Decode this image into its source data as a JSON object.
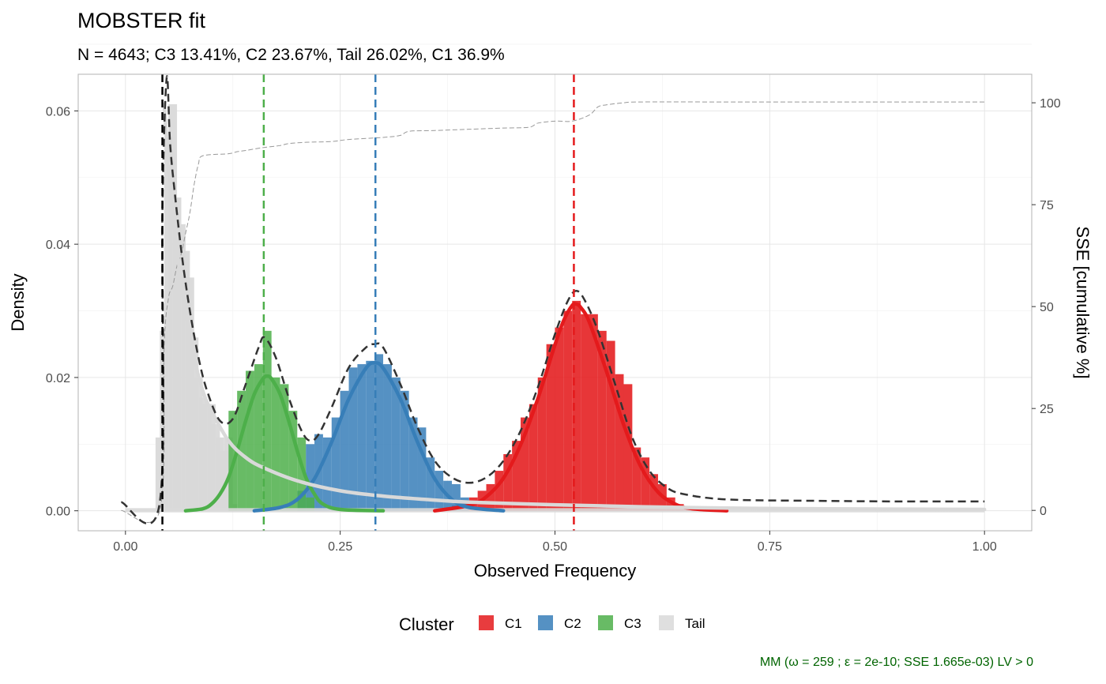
{
  "chart_data": {
    "type": "histogram",
    "title": "MOBSTER fit",
    "subtitle": "N = 4643; C3 13.41%, C2 23.67%, Tail 26.02%, C1 36.9%",
    "xlabel": "Observed Frequency",
    "ylabel": "Density",
    "y2label": "SSE [cumulative %]",
    "xlim": [
      -0.055,
      1.055
    ],
    "ylim": [
      -0.003,
      0.0655
    ],
    "y2lim": [
      -5,
      107
    ],
    "x_ticks": [
      "0.00",
      "0.25",
      "0.50",
      "0.75",
      "1.00"
    ],
    "x_tick_values": [
      0,
      0.25,
      0.5,
      0.75,
      1.0
    ],
    "y_ticks": [
      "0.00",
      "0.02",
      "0.04",
      "0.06"
    ],
    "y_tick_values": [
      0,
      0.02,
      0.04,
      0.06
    ],
    "y2_ticks": [
      "0",
      "25",
      "50",
      "75",
      "100"
    ],
    "y2_tick_values": [
      0,
      25,
      50,
      75,
      100
    ],
    "grid": true,
    "legend_title": "Cluster",
    "legend_position": "bottom",
    "colors": {
      "C1": "#e41a1c",
      "C2": "#377eb8",
      "C3": "#4daf4a",
      "Tail": "#d9d9d9",
      "mixture": "#333333",
      "sse": "#999999",
      "caption": "#006400"
    },
    "legend": [
      {
        "name": "C1",
        "color": "#e41a1c"
      },
      {
        "name": "C2",
        "color": "#377eb8"
      },
      {
        "name": "C3",
        "color": "#4daf4a"
      },
      {
        "name": "Tail",
        "color": "#d9d9d9"
      }
    ],
    "bin_width": 0.01,
    "histogram": {
      "Tail": [
        [
          0.035,
          0.0
        ],
        [
          0.04,
          0.011
        ],
        [
          0.045,
          0.027
        ],
        [
          0.05,
          0.056
        ],
        [
          0.055,
          0.061
        ],
        [
          0.06,
          0.047
        ],
        [
          0.065,
          0.043
        ],
        [
          0.07,
          0.039
        ],
        [
          0.075,
          0.035
        ],
        [
          0.08,
          0.026
        ],
        [
          0.085,
          0.02
        ],
        [
          0.09,
          0.017
        ],
        [
          0.095,
          0.016
        ],
        [
          0.1,
          0.016
        ],
        [
          0.105,
          0.013
        ],
        [
          0.11,
          0.011
        ],
        [
          0.115,
          0.009
        ],
        [
          0.12,
          0.011
        ],
        [
          0.125,
          0.001
        ],
        [
          0.13,
          0.0
        ],
        [
          0.14,
          0.0
        ]
      ],
      "C3": [
        [
          0.125,
          0.015
        ],
        [
          0.135,
          0.018
        ],
        [
          0.145,
          0.021
        ],
        [
          0.155,
          0.022
        ],
        [
          0.165,
          0.027
        ],
        [
          0.175,
          0.02
        ],
        [
          0.185,
          0.019
        ],
        [
          0.195,
          0.015
        ],
        [
          0.205,
          0.011
        ],
        [
          0.215,
          0.002
        ]
      ],
      "C2": [
        [
          0.205,
          0.003
        ],
        [
          0.215,
          0.01
        ],
        [
          0.225,
          0.0115
        ],
        [
          0.235,
          0.011
        ],
        [
          0.245,
          0.014
        ],
        [
          0.255,
          0.018
        ],
        [
          0.265,
          0.0215
        ],
        [
          0.275,
          0.022
        ],
        [
          0.285,
          0.0225
        ],
        [
          0.295,
          0.0235
        ],
        [
          0.305,
          0.022
        ],
        [
          0.315,
          0.02
        ],
        [
          0.325,
          0.018
        ],
        [
          0.335,
          0.014
        ],
        [
          0.345,
          0.0125
        ],
        [
          0.355,
          0.008
        ],
        [
          0.365,
          0.006
        ],
        [
          0.375,
          0.0045
        ],
        [
          0.385,
          0.004
        ],
        [
          0.395,
          0.002
        ]
      ],
      "C1": [
        [
          0.385,
          0.0008
        ],
        [
          0.395,
          0.0012
        ],
        [
          0.405,
          0.002
        ],
        [
          0.415,
          0.003
        ],
        [
          0.425,
          0.004
        ],
        [
          0.435,
          0.006
        ],
        [
          0.445,
          0.0085
        ],
        [
          0.455,
          0.0105
        ],
        [
          0.465,
          0.014
        ],
        [
          0.475,
          0.016
        ],
        [
          0.485,
          0.02
        ],
        [
          0.495,
          0.025
        ],
        [
          0.505,
          0.0275
        ],
        [
          0.515,
          0.03
        ],
        [
          0.525,
          0.0315
        ],
        [
          0.535,
          0.0295
        ],
        [
          0.545,
          0.0295
        ],
        [
          0.555,
          0.027
        ],
        [
          0.565,
          0.0255
        ],
        [
          0.575,
          0.0205
        ],
        [
          0.585,
          0.019
        ],
        [
          0.595,
          0.0095
        ],
        [
          0.605,
          0.008
        ],
        [
          0.615,
          0.0055
        ],
        [
          0.625,
          0.004
        ],
        [
          0.635,
          0.002
        ],
        [
          0.645,
          0.001
        ],
        [
          0.655,
          0.0005
        ],
        [
          0.665,
          0.0003
        ]
      ]
    },
    "component_curves": {
      "Tail": [
        [
          0.045,
          0.061
        ],
        [
          0.05,
          0.052
        ],
        [
          0.055,
          0.045
        ],
        [
          0.06,
          0.039
        ],
        [
          0.07,
          0.03
        ],
        [
          0.08,
          0.023
        ],
        [
          0.09,
          0.018
        ],
        [
          0.1,
          0.015
        ],
        [
          0.12,
          0.0105
        ],
        [
          0.14,
          0.008
        ],
        [
          0.16,
          0.0065
        ],
        [
          0.2,
          0.0045
        ],
        [
          0.25,
          0.003
        ],
        [
          0.3,
          0.0022
        ],
        [
          0.35,
          0.0017
        ],
        [
          0.4,
          0.0013
        ],
        [
          0.5,
          0.0009
        ],
        [
          0.6,
          0.0006
        ],
        [
          0.7,
          0.0004
        ],
        [
          0.8,
          0.0003
        ],
        [
          1.0,
          0.0002
        ]
      ],
      "C3": [
        [
          0.07,
          0.0
        ],
        [
          0.09,
          0.0003
        ],
        [
          0.1,
          0.001
        ],
        [
          0.11,
          0.0025
        ],
        [
          0.12,
          0.005
        ],
        [
          0.13,
          0.009
        ],
        [
          0.14,
          0.0135
        ],
        [
          0.15,
          0.0175
        ],
        [
          0.16,
          0.0198
        ],
        [
          0.165,
          0.0202
        ],
        [
          0.17,
          0.0198
        ],
        [
          0.18,
          0.0175
        ],
        [
          0.19,
          0.0135
        ],
        [
          0.2,
          0.009
        ],
        [
          0.21,
          0.005
        ],
        [
          0.22,
          0.0025
        ],
        [
          0.23,
          0.001
        ],
        [
          0.25,
          0.0002
        ],
        [
          0.3,
          0.0
        ]
      ],
      "C2": [
        [
          0.15,
          0.0
        ],
        [
          0.18,
          0.0005
        ],
        [
          0.2,
          0.0017
        ],
        [
          0.22,
          0.0048
        ],
        [
          0.24,
          0.0103
        ],
        [
          0.26,
          0.0168
        ],
        [
          0.28,
          0.0214
        ],
        [
          0.29,
          0.0222
        ],
        [
          0.3,
          0.0214
        ],
        [
          0.32,
          0.0168
        ],
        [
          0.34,
          0.0103
        ],
        [
          0.36,
          0.0048
        ],
        [
          0.38,
          0.0017
        ],
        [
          0.4,
          0.0005
        ],
        [
          0.44,
          0.0
        ]
      ],
      "C1": [
        [
          0.36,
          0.0
        ],
        [
          0.4,
          0.0008
        ],
        [
          0.42,
          0.0021
        ],
        [
          0.44,
          0.0049
        ],
        [
          0.46,
          0.0099
        ],
        [
          0.48,
          0.0168
        ],
        [
          0.5,
          0.0249
        ],
        [
          0.51,
          0.0285
        ],
        [
          0.52,
          0.0308
        ],
        [
          0.525,
          0.031
        ],
        [
          0.53,
          0.0305
        ],
        [
          0.54,
          0.0283
        ],
        [
          0.56,
          0.0209
        ],
        [
          0.58,
          0.0129
        ],
        [
          0.6,
          0.0066
        ],
        [
          0.62,
          0.0028
        ],
        [
          0.64,
          0.001
        ],
        [
          0.66,
          0.0003
        ],
        [
          0.7,
          0.0
        ]
      ]
    },
    "mixture_curve": [
      [
        -0.005,
        0.0013
      ],
      [
        0.04,
        0.0013
      ],
      [
        0.043,
        0.045
      ],
      [
        0.048,
        0.065
      ],
      [
        0.052,
        0.055
      ],
      [
        0.058,
        0.047
      ],
      [
        0.066,
        0.038
      ],
      [
        0.075,
        0.03
      ],
      [
        0.085,
        0.023
      ],
      [
        0.095,
        0.018
      ],
      [
        0.11,
        0.0135
      ],
      [
        0.125,
        0.0138
      ],
      [
        0.14,
        0.019
      ],
      [
        0.155,
        0.0245
      ],
      [
        0.162,
        0.026
      ],
      [
        0.175,
        0.023
      ],
      [
        0.19,
        0.017
      ],
      [
        0.205,
        0.012
      ],
      [
        0.215,
        0.0105
      ],
      [
        0.225,
        0.0115
      ],
      [
        0.24,
        0.0155
      ],
      [
        0.26,
        0.0215
      ],
      [
        0.28,
        0.0245
      ],
      [
        0.29,
        0.025
      ],
      [
        0.3,
        0.0245
      ],
      [
        0.32,
        0.019
      ],
      [
        0.34,
        0.0125
      ],
      [
        0.36,
        0.0075
      ],
      [
        0.38,
        0.005
      ],
      [
        0.4,
        0.0042
      ],
      [
        0.42,
        0.005
      ],
      [
        0.44,
        0.0075
      ],
      [
        0.46,
        0.012
      ],
      [
        0.48,
        0.0185
      ],
      [
        0.5,
        0.0265
      ],
      [
        0.515,
        0.0315
      ],
      [
        0.525,
        0.033
      ],
      [
        0.535,
        0.0315
      ],
      [
        0.55,
        0.027
      ],
      [
        0.57,
        0.019
      ],
      [
        0.59,
        0.011
      ],
      [
        0.61,
        0.006
      ],
      [
        0.63,
        0.0035
      ],
      [
        0.65,
        0.0025
      ],
      [
        0.7,
        0.0017
      ],
      [
        0.8,
        0.0015
      ],
      [
        0.9,
        0.0014
      ],
      [
        1.0,
        0.0014
      ]
    ],
    "sse_cumulative": [
      [
        -0.005,
        0
      ],
      [
        0.04,
        0
      ],
      [
        0.045,
        40
      ],
      [
        0.05,
        52
      ],
      [
        0.055,
        55
      ],
      [
        0.06,
        60
      ],
      [
        0.065,
        63
      ],
      [
        0.07,
        68
      ],
      [
        0.075,
        73
      ],
      [
        0.08,
        80
      ],
      [
        0.085,
        85
      ],
      [
        0.09,
        87
      ],
      [
        0.12,
        87.5
      ],
      [
        0.13,
        88
      ],
      [
        0.14,
        88.3
      ],
      [
        0.16,
        89
      ],
      [
        0.18,
        89.5
      ],
      [
        0.19,
        90
      ],
      [
        0.21,
        90.3
      ],
      [
        0.24,
        90.5
      ],
      [
        0.26,
        91
      ],
      [
        0.3,
        91.5
      ],
      [
        0.32,
        92
      ],
      [
        0.33,
        93
      ],
      [
        0.36,
        93.2
      ],
      [
        0.4,
        93.5
      ],
      [
        0.44,
        93.8
      ],
      [
        0.47,
        94
      ],
      [
        0.48,
        95
      ],
      [
        0.5,
        95.5
      ],
      [
        0.52,
        95.5
      ],
      [
        0.54,
        97
      ],
      [
        0.55,
        99
      ],
      [
        0.56,
        99.5
      ],
      [
        0.58,
        100
      ],
      [
        0.6,
        100.2
      ],
      [
        0.7,
        100.2
      ],
      [
        0.8,
        100.2
      ],
      [
        1.0,
        100.2
      ]
    ],
    "vlines": [
      {
        "x": 0.043,
        "color": "#000000"
      },
      {
        "x": 0.161,
        "color": "#4daf4a"
      },
      {
        "x": 0.291,
        "color": "#377eb8"
      },
      {
        "x": 0.522,
        "color": "#e41a1c"
      }
    ],
    "caption": "MM (ω = 259 ; ε = 2e-10; SSE 1.665e-03) LV > 0"
  }
}
